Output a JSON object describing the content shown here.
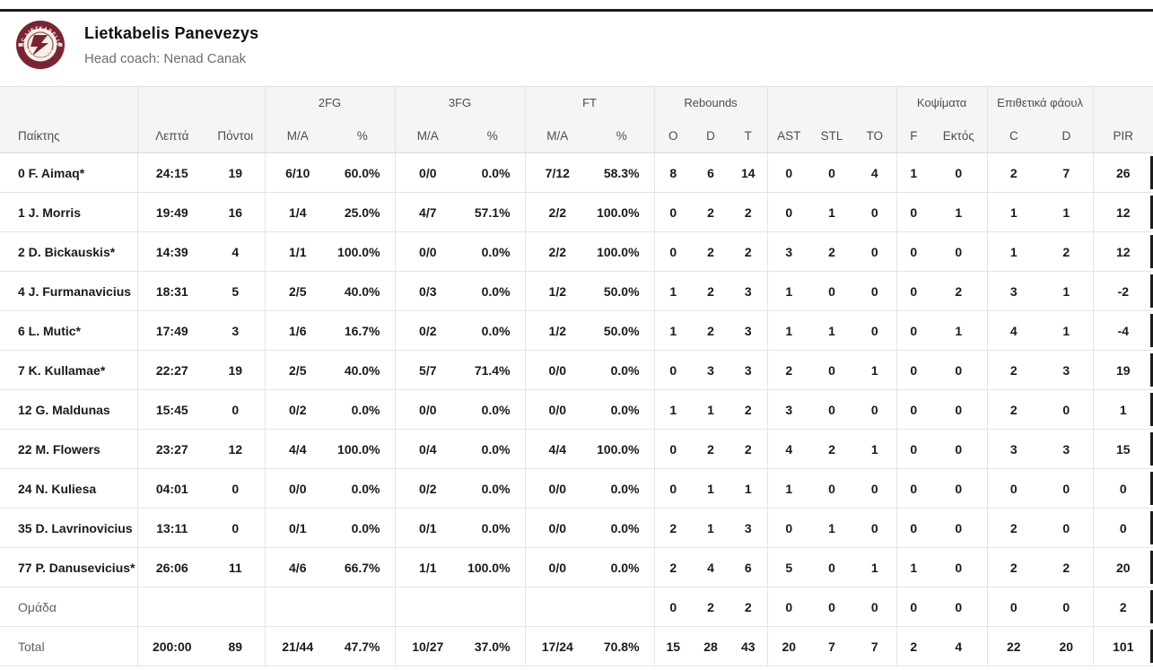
{
  "team": {
    "name": "Lietkabelis Panevezys",
    "coach": "Head coach: Nenad Canak",
    "logo_color": "#7b2332",
    "logo_text_top": "BC LIETKABELIS",
    "logo_text_bottom": "PANEVEZYS"
  },
  "table": {
    "groups": {
      "fg2": "2FG",
      "fg3": "3FG",
      "ft": "FT",
      "rebounds": "Rebounds",
      "blocks": "Κοψίματα",
      "off_fouls": "Επιθετικά φάουλ"
    },
    "columns": [
      "Παίκτης",
      "Λεπτά",
      "Πόντοι",
      "M/A",
      "%",
      "M/A",
      "%",
      "M/A",
      "%",
      "O",
      "D",
      "T",
      "AST",
      "STL",
      "TO",
      "F",
      "Εκτός",
      "C",
      "D",
      "PIR"
    ],
    "players": [
      [
        "0 F. Aimaq*",
        "24:15",
        "19",
        "6/10",
        "60.0%",
        "0/0",
        "0.0%",
        "7/12",
        "58.3%",
        "8",
        "6",
        "14",
        "0",
        "0",
        "4",
        "1",
        "0",
        "2",
        "7",
        "26"
      ],
      [
        "1 J. Morris",
        "19:49",
        "16",
        "1/4",
        "25.0%",
        "4/7",
        "57.1%",
        "2/2",
        "100.0%",
        "0",
        "2",
        "2",
        "0",
        "1",
        "0",
        "0",
        "1",
        "1",
        "1",
        "12"
      ],
      [
        "2 D. Bickauskis*",
        "14:39",
        "4",
        "1/1",
        "100.0%",
        "0/0",
        "0.0%",
        "2/2",
        "100.0%",
        "0",
        "2",
        "2",
        "3",
        "2",
        "0",
        "0",
        "0",
        "1",
        "2",
        "12"
      ],
      [
        "4 J. Furmanavicius",
        "18:31",
        "5",
        "2/5",
        "40.0%",
        "0/3",
        "0.0%",
        "1/2",
        "50.0%",
        "1",
        "2",
        "3",
        "1",
        "0",
        "0",
        "0",
        "2",
        "3",
        "1",
        "-2"
      ],
      [
        "6 L. Mutic*",
        "17:49",
        "3",
        "1/6",
        "16.7%",
        "0/2",
        "0.0%",
        "1/2",
        "50.0%",
        "1",
        "2",
        "3",
        "1",
        "1",
        "0",
        "0",
        "1",
        "4",
        "1",
        "-4"
      ],
      [
        "7 K. Kullamae*",
        "22:27",
        "19",
        "2/5",
        "40.0%",
        "5/7",
        "71.4%",
        "0/0",
        "0.0%",
        "0",
        "3",
        "3",
        "2",
        "0",
        "1",
        "0",
        "0",
        "2",
        "3",
        "19"
      ],
      [
        "12 G. Maldunas",
        "15:45",
        "0",
        "0/2",
        "0.0%",
        "0/0",
        "0.0%",
        "0/0",
        "0.0%",
        "1",
        "1",
        "2",
        "3",
        "0",
        "0",
        "0",
        "0",
        "2",
        "0",
        "1"
      ],
      [
        "22 M. Flowers",
        "23:27",
        "12",
        "4/4",
        "100.0%",
        "0/4",
        "0.0%",
        "4/4",
        "100.0%",
        "0",
        "2",
        "2",
        "4",
        "2",
        "1",
        "0",
        "0",
        "3",
        "3",
        "15"
      ],
      [
        "24 N. Kuliesa",
        "04:01",
        "0",
        "0/0",
        "0.0%",
        "0/2",
        "0.0%",
        "0/0",
        "0.0%",
        "0",
        "1",
        "1",
        "1",
        "0",
        "0",
        "0",
        "0",
        "0",
        "0",
        "0"
      ],
      [
        "35 D. Lavrinovicius",
        "13:11",
        "0",
        "0/1",
        "0.0%",
        "0/1",
        "0.0%",
        "0/0",
        "0.0%",
        "2",
        "1",
        "3",
        "0",
        "1",
        "0",
        "0",
        "0",
        "2",
        "0",
        "0"
      ],
      [
        "77 P. Danusevicius*",
        "26:06",
        "11",
        "4/6",
        "66.7%",
        "1/1",
        "100.0%",
        "0/0",
        "0.0%",
        "2",
        "4",
        "6",
        "5",
        "0",
        "1",
        "1",
        "0",
        "2",
        "2",
        "20"
      ]
    ],
    "team_row": [
      "Ομάδα",
      "",
      "",
      "",
      "",
      "",
      "",
      "",
      "",
      "0",
      "2",
      "2",
      "0",
      "0",
      "0",
      "0",
      "0",
      "0",
      "0",
      "2"
    ],
    "total_row": [
      "Total",
      "200:00",
      "89",
      "21/44",
      "47.7%",
      "10/27",
      "37.0%",
      "17/24",
      "70.8%",
      "15",
      "28",
      "43",
      "20",
      "7",
      "7",
      "2",
      "4",
      "22",
      "20",
      "101"
    ]
  }
}
